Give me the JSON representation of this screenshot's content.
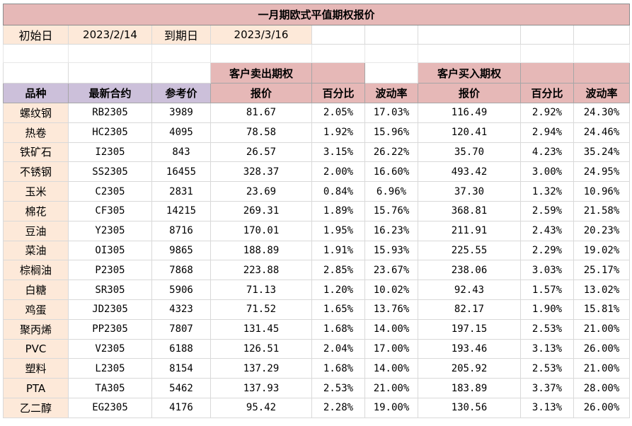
{
  "sheet": {
    "title": "一月期欧式平值期权报价",
    "meta": {
      "start_label": "初始日",
      "start_value": "2023/2/14",
      "expiry_label": "到期日",
      "expiry_value": "2023/3/16"
    },
    "groups": {
      "sell": "客户卖出期权",
      "buy": "客户买入期权"
    },
    "headers": [
      "品种",
      "最新合约",
      "参考价",
      "报价",
      "百分比",
      "波动率",
      "报价",
      "百分比",
      "波动率"
    ],
    "rows": [
      [
        "螺纹钢",
        "RB2305",
        "3989",
        "81.67",
        "2.05%",
        "17.03%",
        "116.49",
        "2.92%",
        "24.30%"
      ],
      [
        "热卷",
        "HC2305",
        "4095",
        "78.58",
        "1.92%",
        "15.96%",
        "120.41",
        "2.94%",
        "24.46%"
      ],
      [
        "铁矿石",
        "I2305",
        "843",
        "26.57",
        "3.15%",
        "26.22%",
        "35.70",
        "4.23%",
        "35.24%"
      ],
      [
        "不锈钢",
        "SS2305",
        "16455",
        "328.37",
        "2.00%",
        "16.60%",
        "493.42",
        "3.00%",
        "24.95%"
      ],
      [
        "玉米",
        "C2305",
        "2831",
        "23.69",
        "0.84%",
        "6.96%",
        "37.30",
        "1.32%",
        "10.96%"
      ],
      [
        "棉花",
        "CF305",
        "14215",
        "269.31",
        "1.89%",
        "15.76%",
        "368.81",
        "2.59%",
        "21.58%"
      ],
      [
        "豆油",
        "Y2305",
        "8716",
        "170.01",
        "1.95%",
        "16.23%",
        "211.91",
        "2.43%",
        "20.23%"
      ],
      [
        "菜油",
        "OI305",
        "9865",
        "188.89",
        "1.91%",
        "15.93%",
        "225.55",
        "2.29%",
        "19.02%"
      ],
      [
        "棕榈油",
        "P2305",
        "7868",
        "223.88",
        "2.85%",
        "23.67%",
        "238.06",
        "3.03%",
        "25.17%"
      ],
      [
        "白糖",
        "SR305",
        "5906",
        "71.13",
        "1.20%",
        "10.02%",
        "92.43",
        "1.57%",
        "13.02%"
      ],
      [
        "鸡蛋",
        "JD2305",
        "4323",
        "71.52",
        "1.65%",
        "13.76%",
        "82.17",
        "1.90%",
        "15.81%"
      ],
      [
        "聚丙烯",
        "PP2305",
        "7807",
        "131.45",
        "1.68%",
        "14.00%",
        "197.15",
        "2.53%",
        "21.00%"
      ],
      [
        "PVC",
        "V2305",
        "6188",
        "126.51",
        "2.04%",
        "17.00%",
        "193.46",
        "3.13%",
        "26.00%"
      ],
      [
        "塑料",
        "L2305",
        "8154",
        "137.29",
        "1.68%",
        "14.00%",
        "205.92",
        "2.53%",
        "21.00%"
      ],
      [
        "PTA",
        "TA305",
        "5462",
        "137.93",
        "2.53%",
        "21.00%",
        "183.89",
        "3.37%",
        "28.00%"
      ],
      [
        "乙二醇",
        "EG2305",
        "4176",
        "95.42",
        "2.28%",
        "19.00%",
        "130.56",
        "3.13%",
        "26.00%"
      ]
    ]
  }
}
